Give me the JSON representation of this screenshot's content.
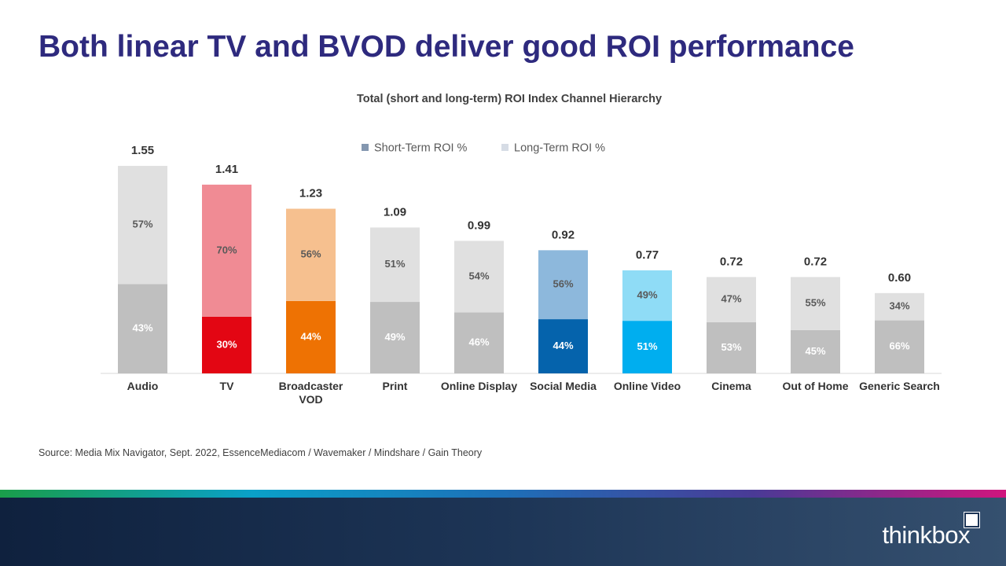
{
  "chart_data": {
    "type": "stacked-bar",
    "title": "Both linear TV and BVOD deliver good ROI performance",
    "subtitle": "Total (short and long-term) ROI Index Channel Hierarchy",
    "categories": [
      "Audio",
      "TV",
      "Broadcaster VOD",
      "Print",
      "Online Display",
      "Social Media",
      "Online Video",
      "Cinema",
      "Out of Home",
      "Generic Search"
    ],
    "totals": {
      "values": [
        1.55,
        1.41,
        1.23,
        1.09,
        0.99,
        0.92,
        0.77,
        0.72,
        0.72,
        0.6
      ],
      "value_labels": [
        "1.55",
        "1.41",
        "1.23",
        "1.09",
        "0.99",
        "0.92",
        "0.77",
        "0.72",
        "0.72",
        "0.60"
      ]
    },
    "series": [
      {
        "name": "Short-Term ROI %",
        "color": "#8497b0",
        "colors": [
          "#bfbfbf",
          "#e30613",
          "#ee7203",
          "#bfbfbf",
          "#bfbfbf",
          "#0563ac",
          "#00aeef",
          "#bfbfbf",
          "#bfbfbf",
          "#bfbfbf"
        ],
        "values": [
          43,
          30,
          44,
          49,
          46,
          44,
          51,
          53,
          45,
          66
        ],
        "value_labels": [
          "43%",
          "30%",
          "44%",
          "49%",
          "46%",
          "44%",
          "51%",
          "53%",
          "45%",
          "66%"
        ]
      },
      {
        "name": "Long-Term ROI %",
        "color": "#d6dce5",
        "colors": [
          "#e0e0e0",
          "#f08b94",
          "#f6c08f",
          "#e0e0e0",
          "#e0e0e0",
          "#8db8dc",
          "#8fdcf6",
          "#e0e0e0",
          "#e0e0e0",
          "#e0e0e0"
        ],
        "values": [
          57,
          70,
          56,
          51,
          54,
          56,
          49,
          47,
          55,
          34
        ],
        "value_labels": [
          "57%",
          "70%",
          "56%",
          "51%",
          "54%",
          "56%",
          "49%",
          "47%",
          "55%",
          "34%"
        ]
      }
    ],
    "source": "Source: Media Mix Navigator,  Sept. 2022, EssenceMediacom  / Wavemaker / Mindshare / Gain Theory",
    "logo": "thinkbox"
  }
}
